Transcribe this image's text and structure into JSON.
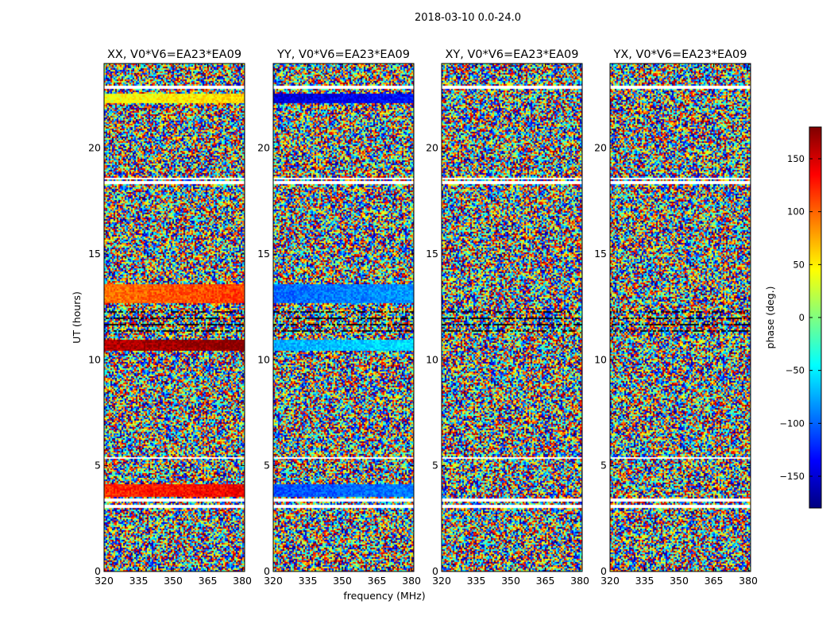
{
  "figure_title": "2018-03-10 0.0-24.0",
  "chart_data": {
    "type": "heatmap",
    "title": "2018-03-10 0.0-24.0",
    "xlabel": "frequency (MHz)",
    "ylabel": "UT (hours)",
    "xlim": [
      320,
      381
    ],
    "ylim": [
      0,
      24
    ],
    "xticks": [
      320,
      335,
      350,
      365,
      380
    ],
    "yticks": [
      0,
      5,
      10,
      15,
      20
    ],
    "colorbar": {
      "label": "phase (deg.)",
      "range": [
        -180,
        180
      ],
      "ticks": [
        150,
        100,
        50,
        0,
        -50,
        -100,
        -150
      ],
      "tick_labels": [
        "150",
        "100",
        "50",
        "0",
        "−50",
        "−100",
        "−150"
      ],
      "colormap": "jet"
    },
    "panels": [
      {
        "title": "XX, V0*V6=EA23*EA09",
        "coherent_phase_bands": [
          {
            "ut": [
              3.6,
              4.2
            ],
            "phase": 120
          },
          {
            "ut": [
              10.5,
              11.0
            ],
            "phase": 160
          },
          {
            "ut": [
              12.7,
              13.6
            ],
            "phase": 95
          },
          {
            "ut": [
              22.2,
              22.6
            ],
            "phase": 40
          }
        ],
        "blank_ut_rows": [
          3.1,
          3.4,
          5.4,
          18.4,
          18.6,
          22.9
        ]
      },
      {
        "title": "YY, V0*V6=EA23*EA09",
        "coherent_phase_bands": [
          {
            "ut": [
              3.6,
              4.2
            ],
            "phase": -110
          },
          {
            "ut": [
              10.5,
              11.0
            ],
            "phase": -75
          },
          {
            "ut": [
              12.7,
              13.6
            ],
            "phase": -100
          },
          {
            "ut": [
              22.2,
              22.6
            ],
            "phase": -150
          }
        ],
        "blank_ut_rows": [
          3.1,
          3.4,
          5.4,
          18.4,
          18.6,
          22.9
        ]
      },
      {
        "title": "XY, V0*V6=EA23*EA09",
        "coherent_phase_bands": [],
        "blank_ut_rows": [
          3.1,
          3.4,
          5.4,
          18.4,
          18.6,
          22.9
        ]
      },
      {
        "title": "YX, V0*V6=EA23*EA09",
        "coherent_phase_bands": [],
        "blank_ut_rows": [
          3.1,
          3.4,
          5.4,
          18.4,
          18.6,
          22.9
        ]
      }
    ]
  },
  "colors": {
    "jet_stops": [
      "#00007f",
      "#0000ff",
      "#0080ff",
      "#00ffff",
      "#80ff80",
      "#ffff00",
      "#ff8000",
      "#ff0000",
      "#7f0000"
    ]
  }
}
